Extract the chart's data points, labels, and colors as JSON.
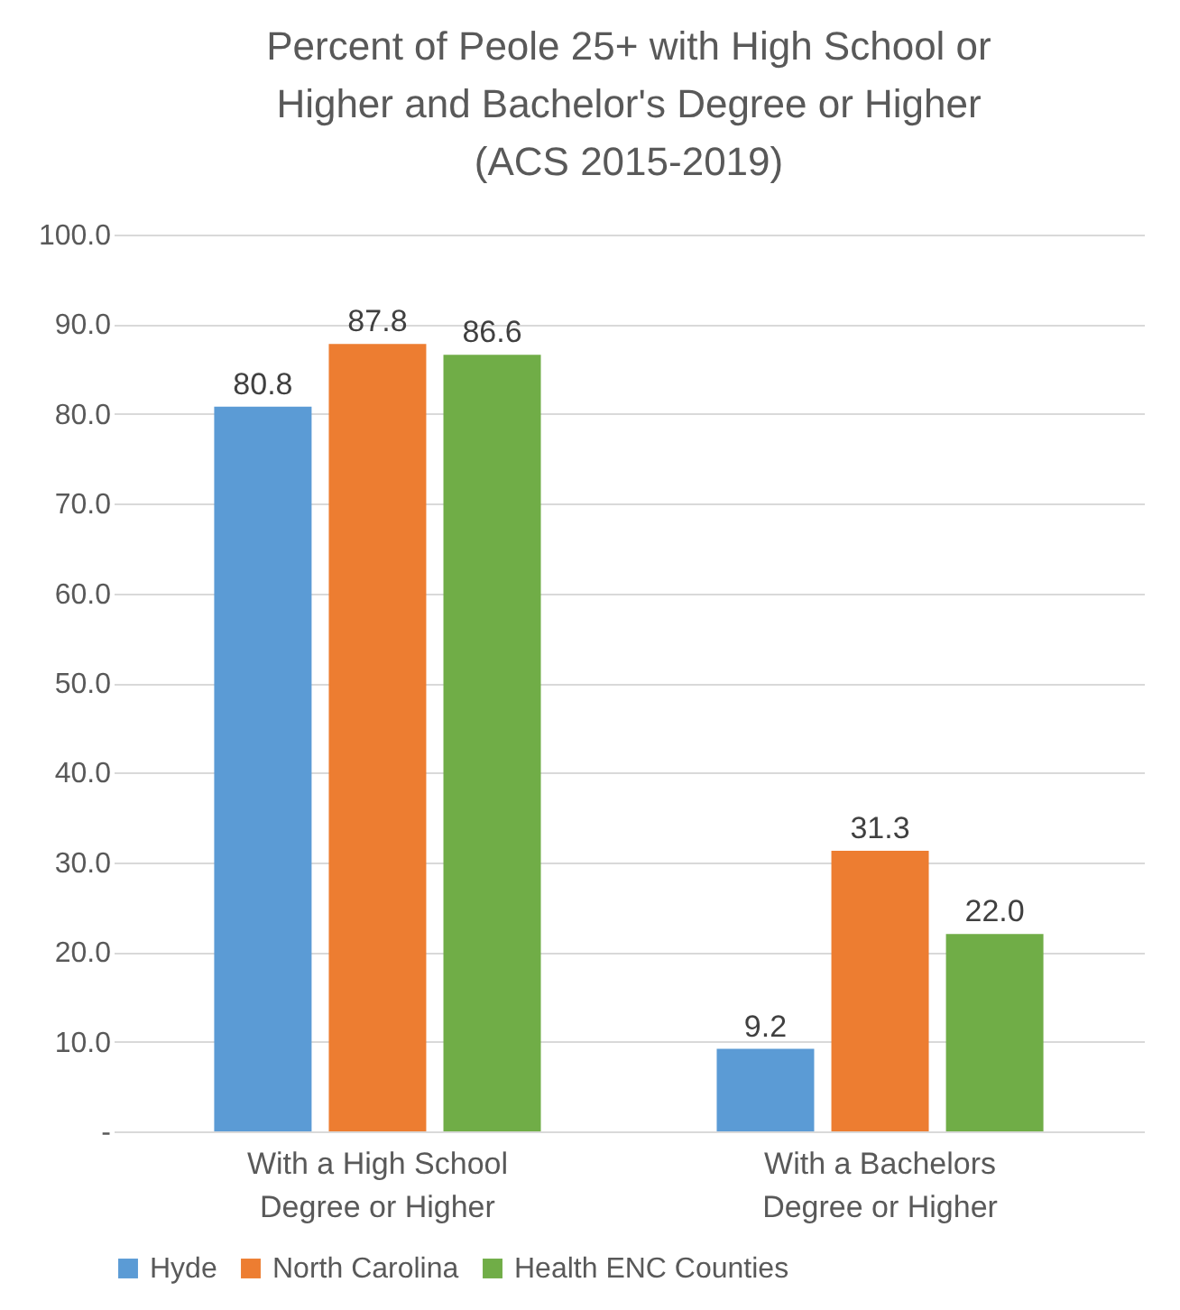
{
  "chart_data": {
    "type": "bar",
    "title": "Percent of Peole 25+ with High School or Higher and Bachelor's Degree or Higher (ACS 2015-2019)",
    "categories": [
      "With a High School Degree or Higher",
      "With a Bachelors Degree or Higher"
    ],
    "series": [
      {
        "name": "Hyde",
        "color": "#5b9bd5",
        "values": [
          80.8,
          9.2
        ],
        "value_labels": [
          "80.8",
          "9.2"
        ]
      },
      {
        "name": "North Carolina",
        "color": "#ed7d31",
        "values": [
          87.8,
          31.3
        ],
        "value_labels": [
          "87.8",
          "31.3"
        ]
      },
      {
        "name": "Health ENC Counties",
        "color": "#70ad47",
        "values": [
          86.6,
          22.0
        ],
        "value_labels": [
          "86.6",
          "22.0"
        ]
      }
    ],
    "ylim": [
      0,
      100
    ],
    "yticks": [
      {
        "value": 0,
        "label": "-"
      },
      {
        "value": 10,
        "label": "10.0"
      },
      {
        "value": 20,
        "label": "20.0"
      },
      {
        "value": 30,
        "label": "30.0"
      },
      {
        "value": 40,
        "label": "40.0"
      },
      {
        "value": 50,
        "label": "50.0"
      },
      {
        "value": 60,
        "label": "60.0"
      },
      {
        "value": 70,
        "label": "70.0"
      },
      {
        "value": 80,
        "label": "80.0"
      },
      {
        "value": 90,
        "label": "90.0"
      },
      {
        "value": 100,
        "label": "100.0"
      }
    ],
    "grid": "y",
    "legend": "bottom"
  }
}
